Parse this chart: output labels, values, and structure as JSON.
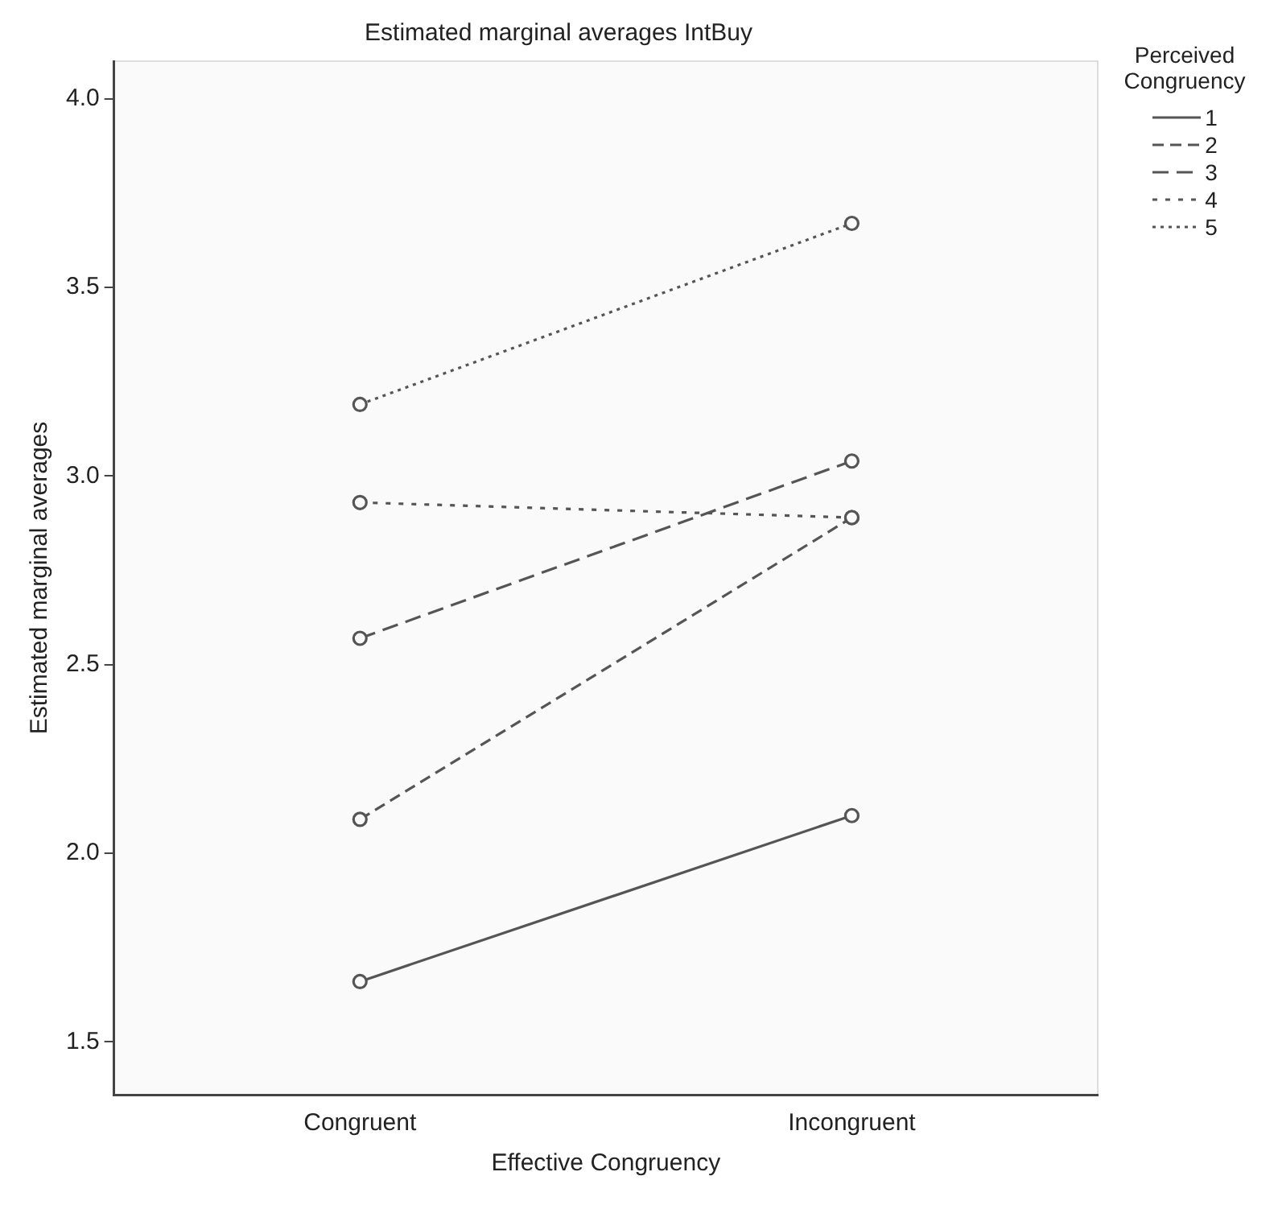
{
  "chart_data": {
    "type": "line",
    "title": "Estimated marginal averages IntBuy",
    "xlabel": "Effective Congruency",
    "ylabel": "Estimated marginal averages",
    "legend_title": "Perceived Congruency",
    "categories": [
      "Congruent",
      "Incongruent"
    ],
    "series": [
      {
        "name": "1",
        "color": "#555555",
        "line_style": "solid",
        "values": [
          1.66,
          2.1
        ]
      },
      {
        "name": "2",
        "color": "#555555",
        "line_style": "dashed",
        "values": [
          2.09,
          2.89
        ]
      },
      {
        "name": "3",
        "color": "#555555",
        "line_style": "dashed",
        "values": [
          2.57,
          3.04
        ]
      },
      {
        "name": "4",
        "color": "#555555",
        "line_style": "dotted",
        "values": [
          2.93,
          2.89
        ]
      },
      {
        "name": "5",
        "color": "#555555",
        "line_style": "dotted",
        "values": [
          3.19,
          3.67
        ]
      }
    ],
    "ylim": [
      1.36,
      4.1
    ],
    "yticks": [
      1.5,
      {
        "value": 2,
        "label": "2.0"
      },
      2.5,
      {
        "value": 3,
        "label": "3.0"
      },
      3.5,
      {
        "value": 4,
        "label": "4.0"
      }
    ],
    "grid": false,
    "legend": "top right",
    "marker": "circle"
  }
}
